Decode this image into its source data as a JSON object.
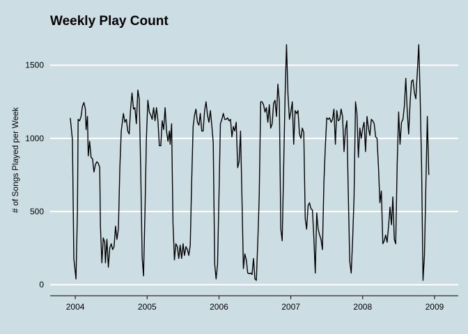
{
  "chart_data": {
    "type": "line",
    "title": "Weekly Play Count",
    "xlabel": "",
    "ylabel": "# of Songs Played per Week",
    "x_tick_labels": [
      "2004",
      "2005",
      "2006",
      "2007",
      "2008",
      "2009"
    ],
    "y_tick_labels": [
      "0",
      "500",
      "1000",
      "1500"
    ],
    "y_ticks": [
      0,
      500,
      1000,
      1500
    ],
    "xlim": [
      2003.65,
      2009.33
    ],
    "ylim": [
      -75,
      1660
    ],
    "grid": "horizontal",
    "background": "#cddde4",
    "line_color": "#000000",
    "series": [
      {
        "values": [
          [
            2003.93,
            1140
          ],
          [
            2003.96,
            990
          ],
          [
            2003.98,
            180
          ],
          [
            2004.01,
            40
          ],
          [
            2004.03,
            500
          ],
          [
            2004.04,
            1130
          ],
          [
            2004.06,
            1120
          ],
          [
            2004.08,
            1150
          ],
          [
            2004.1,
            1220
          ],
          [
            2004.12,
            1245
          ],
          [
            2004.14,
            1200
          ],
          [
            2004.15,
            1060
          ],
          [
            2004.17,
            1150
          ],
          [
            2004.18,
            880
          ],
          [
            2004.2,
            980
          ],
          [
            2004.22,
            870
          ],
          [
            2004.24,
            860
          ],
          [
            2004.26,
            770
          ],
          [
            2004.28,
            820
          ],
          [
            2004.3,
            840
          ],
          [
            2004.32,
            830
          ],
          [
            2004.34,
            800
          ],
          [
            2004.35,
            400
          ],
          [
            2004.37,
            150
          ],
          [
            2004.39,
            320
          ],
          [
            2004.41,
            290
          ],
          [
            2004.42,
            150
          ],
          [
            2004.44,
            310
          ],
          [
            2004.46,
            120
          ],
          [
            2004.48,
            250
          ],
          [
            2004.5,
            280
          ],
          [
            2004.52,
            240
          ],
          [
            2004.54,
            260
          ],
          [
            2004.56,
            400
          ],
          [
            2004.58,
            310
          ],
          [
            2004.6,
            380
          ],
          [
            2004.62,
            800
          ],
          [
            2004.64,
            1050
          ],
          [
            2004.67,
            1170
          ],
          [
            2004.69,
            1110
          ],
          [
            2004.71,
            1130
          ],
          [
            2004.73,
            1050
          ],
          [
            2004.75,
            1030
          ],
          [
            2004.77,
            1200
          ],
          [
            2004.79,
            1310
          ],
          [
            2004.81,
            1200
          ],
          [
            2004.83,
            1210
          ],
          [
            2004.85,
            1100
          ],
          [
            2004.87,
            1330
          ],
          [
            2004.89,
            1270
          ],
          [
            2004.91,
            800
          ],
          [
            2004.93,
            190
          ],
          [
            2004.95,
            60
          ],
          [
            2004.97,
            500
          ],
          [
            2004.99,
            1000
          ],
          [
            2005.01,
            1260
          ],
          [
            2005.03,
            1180
          ],
          [
            2005.05,
            1160
          ],
          [
            2005.07,
            1130
          ],
          [
            2005.09,
            1210
          ],
          [
            2005.11,
            1120
          ],
          [
            2005.13,
            1210
          ],
          [
            2005.15,
            1120
          ],
          [
            2005.17,
            950
          ],
          [
            2005.19,
            950
          ],
          [
            2005.21,
            1120
          ],
          [
            2005.23,
            1060
          ],
          [
            2005.25,
            1210
          ],
          [
            2005.27,
            1050
          ],
          [
            2005.29,
            980
          ],
          [
            2005.31,
            1050
          ],
          [
            2005.32,
            960
          ],
          [
            2005.34,
            1100
          ],
          [
            2005.36,
            420
          ],
          [
            2005.38,
            170
          ],
          [
            2005.4,
            280
          ],
          [
            2005.42,
            260
          ],
          [
            2005.44,
            180
          ],
          [
            2005.46,
            270
          ],
          [
            2005.48,
            180
          ],
          [
            2005.5,
            280
          ],
          [
            2005.52,
            200
          ],
          [
            2005.54,
            260
          ],
          [
            2005.56,
            240
          ],
          [
            2005.58,
            200
          ],
          [
            2005.6,
            270
          ],
          [
            2005.62,
            700
          ],
          [
            2005.64,
            1080
          ],
          [
            2005.66,
            1160
          ],
          [
            2005.68,
            1200
          ],
          [
            2005.7,
            1110
          ],
          [
            2005.72,
            1090
          ],
          [
            2005.74,
            1170
          ],
          [
            2005.76,
            1050
          ],
          [
            2005.78,
            1050
          ],
          [
            2005.8,
            1190
          ],
          [
            2005.82,
            1250
          ],
          [
            2005.84,
            1160
          ],
          [
            2005.86,
            1110
          ],
          [
            2005.88,
            1190
          ],
          [
            2005.9,
            1090
          ],
          [
            2005.92,
            970
          ],
          [
            2005.94,
            140
          ],
          [
            2005.96,
            40
          ],
          [
            2005.98,
            140
          ],
          [
            2006.0,
            600
          ],
          [
            2006.02,
            1100
          ],
          [
            2006.04,
            1130
          ],
          [
            2006.06,
            1170
          ],
          [
            2006.08,
            1130
          ],
          [
            2006.1,
            1130
          ],
          [
            2006.12,
            1140
          ],
          [
            2006.14,
            1120
          ],
          [
            2006.16,
            1130
          ],
          [
            2006.18,
            1010
          ],
          [
            2006.2,
            1080
          ],
          [
            2006.22,
            1050
          ],
          [
            2006.24,
            1110
          ],
          [
            2006.26,
            800
          ],
          [
            2006.28,
            840
          ],
          [
            2006.3,
            1050
          ],
          [
            2006.32,
            580
          ],
          [
            2006.34,
            110
          ],
          [
            2006.36,
            210
          ],
          [
            2006.38,
            170
          ],
          [
            2006.4,
            80
          ],
          [
            2006.42,
            75
          ],
          [
            2006.44,
            80
          ],
          [
            2006.46,
            70
          ],
          [
            2006.48,
            180
          ],
          [
            2006.5,
            40
          ],
          [
            2006.52,
            30
          ],
          [
            2006.54,
            300
          ],
          [
            2006.56,
            600
          ],
          [
            2006.58,
            1250
          ],
          [
            2006.6,
            1250
          ],
          [
            2006.62,
            1230
          ],
          [
            2006.64,
            1180
          ],
          [
            2006.66,
            1210
          ],
          [
            2006.68,
            1110
          ],
          [
            2006.7,
            1230
          ],
          [
            2006.72,
            1070
          ],
          [
            2006.74,
            1100
          ],
          [
            2006.76,
            1240
          ],
          [
            2006.78,
            1260
          ],
          [
            2006.8,
            1150
          ],
          [
            2006.82,
            1370
          ],
          [
            2006.84,
            1250
          ],
          [
            2006.86,
            380
          ],
          [
            2006.88,
            300
          ],
          [
            2006.9,
            800
          ],
          [
            2006.92,
            1300
          ],
          [
            2006.94,
            1640
          ],
          [
            2006.96,
            1300
          ],
          [
            2006.98,
            1130
          ],
          [
            2007.0,
            1180
          ],
          [
            2007.02,
            1250
          ],
          [
            2007.04,
            960
          ],
          [
            2007.06,
            1190
          ],
          [
            2007.08,
            1170
          ],
          [
            2007.1,
            1190
          ],
          [
            2007.12,
            1030
          ],
          [
            2007.14,
            1000
          ],
          [
            2007.16,
            1070
          ],
          [
            2007.18,
            1040
          ],
          [
            2007.2,
            450
          ],
          [
            2007.22,
            380
          ],
          [
            2007.24,
            540
          ],
          [
            2007.26,
            560
          ],
          [
            2007.28,
            520
          ],
          [
            2007.3,
            510
          ],
          [
            2007.32,
            330
          ],
          [
            2007.34,
            80
          ],
          [
            2007.36,
            490
          ],
          [
            2007.38,
            380
          ],
          [
            2007.4,
            340
          ],
          [
            2007.42,
            310
          ],
          [
            2007.44,
            240
          ],
          [
            2007.46,
            700
          ],
          [
            2007.48,
            940
          ],
          [
            2007.5,
            1140
          ],
          [
            2007.52,
            1130
          ],
          [
            2007.54,
            1140
          ],
          [
            2007.56,
            1110
          ],
          [
            2007.58,
            1130
          ],
          [
            2007.6,
            1200
          ],
          [
            2007.62,
            960
          ],
          [
            2007.64,
            1190
          ],
          [
            2007.66,
            1120
          ],
          [
            2007.68,
            1130
          ],
          [
            2007.7,
            1200
          ],
          [
            2007.72,
            1150
          ],
          [
            2007.74,
            910
          ],
          [
            2007.76,
            1060
          ],
          [
            2007.78,
            1120
          ],
          [
            2007.8,
            600
          ],
          [
            2007.82,
            160
          ],
          [
            2007.84,
            80
          ],
          [
            2007.86,
            300
          ],
          [
            2007.88,
            600
          ],
          [
            2007.9,
            1250
          ],
          [
            2007.92,
            1170
          ],
          [
            2007.94,
            870
          ],
          [
            2007.96,
            1070
          ],
          [
            2007.98,
            1000
          ],
          [
            2008.0,
            1070
          ],
          [
            2008.02,
            1110
          ],
          [
            2008.04,
            910
          ],
          [
            2008.06,
            1150
          ],
          [
            2008.08,
            1070
          ],
          [
            2008.1,
            1020
          ],
          [
            2008.12,
            1130
          ],
          [
            2008.14,
            1120
          ],
          [
            2008.16,
            1100
          ],
          [
            2008.18,
            1010
          ],
          [
            2008.2,
            1000
          ],
          [
            2008.22,
            800
          ],
          [
            2008.24,
            560
          ],
          [
            2008.26,
            640
          ],
          [
            2008.28,
            280
          ],
          [
            2008.3,
            300
          ],
          [
            2008.32,
            340
          ],
          [
            2008.34,
            290
          ],
          [
            2008.36,
            400
          ],
          [
            2008.38,
            530
          ],
          [
            2008.4,
            410
          ],
          [
            2008.42,
            600
          ],
          [
            2008.44,
            310
          ],
          [
            2008.46,
            280
          ],
          [
            2008.48,
            820
          ],
          [
            2008.5,
            1180
          ],
          [
            2008.52,
            960
          ],
          [
            2008.54,
            1110
          ],
          [
            2008.56,
            1130
          ],
          [
            2008.58,
            1220
          ],
          [
            2008.6,
            1410
          ],
          [
            2008.62,
            1190
          ],
          [
            2008.64,
            1030
          ],
          [
            2008.66,
            1250
          ],
          [
            2008.68,
            1390
          ],
          [
            2008.7,
            1400
          ],
          [
            2008.72,
            1310
          ],
          [
            2008.74,
            1270
          ],
          [
            2008.76,
            1450
          ],
          [
            2008.78,
            1640
          ],
          [
            2008.8,
            1290
          ],
          [
            2008.82,
            800
          ],
          [
            2008.84,
            30
          ],
          [
            2008.86,
            200
          ],
          [
            2008.88,
            700
          ],
          [
            2008.9,
            1150
          ],
          [
            2008.92,
            750
          ]
        ]
      }
    ]
  }
}
